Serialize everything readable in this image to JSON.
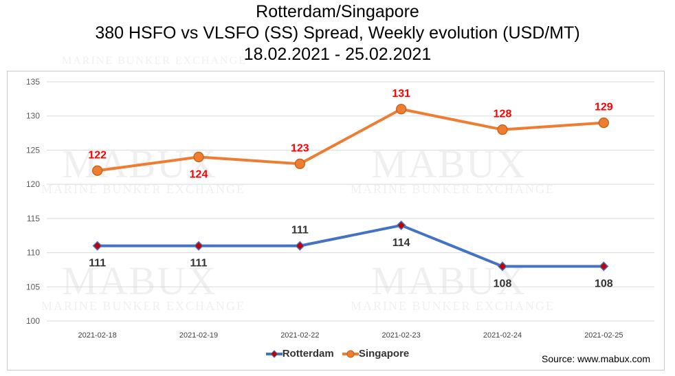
{
  "title_lines": [
    "Rotterdam/Singapore",
    "380 HSFO vs VLSFO (SS) Spread, Weekly evolution (USD/MT)",
    "18.02.2021 - 25.02.2021"
  ],
  "source": "Source: www.mabux.com",
  "watermark": {
    "big": "MABUX",
    "small": "MARINE BUNKER EXCHANGE"
  },
  "chart_data": {
    "type": "line",
    "categories": [
      "2021-02-18",
      "2021-02-19",
      "2021-02-22",
      "2021-02-23",
      "2021-02-24",
      "2021-02-25"
    ],
    "series": [
      {
        "name": "Rotterdam",
        "values": [
          111,
          111,
          111,
          114,
          108,
          108
        ],
        "color": "#4472C4",
        "marker_color": "#C00000",
        "label_color": "#333333"
      },
      {
        "name": "Singapore",
        "values": [
          122,
          124,
          123,
          131,
          128,
          129
        ],
        "color": "#ED7D31",
        "marker_color": "#ED7D31",
        "label_color": "#FF0000"
      }
    ],
    "ylim": [
      100,
      135
    ],
    "yticks": [
      100,
      105,
      110,
      115,
      120,
      125,
      130,
      135
    ],
    "grid": true,
    "legend_position": "bottom",
    "xlabel": "",
    "ylabel": ""
  }
}
